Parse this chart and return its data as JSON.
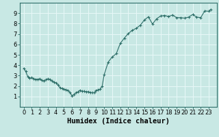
{
  "xlabel": "Humidex (Indice chaleur)",
  "background_color": "#c8e8e4",
  "grid_color": "#e8f8f8",
  "line_color": "#2d6e68",
  "marker_color": "#2d6e68",
  "x_values": [
    0,
    0.25,
    0.5,
    0.75,
    1,
    1.25,
    1.5,
    1.75,
    2,
    2.25,
    2.5,
    2.75,
    3,
    3.25,
    3.5,
    3.75,
    4,
    4.25,
    4.5,
    4.75,
    5,
    5.25,
    5.5,
    5.75,
    6,
    6.25,
    6.5,
    6.75,
    7,
    7.25,
    7.5,
    7.75,
    8,
    8.25,
    8.5,
    8.75,
    9,
    9.25,
    9.5,
    9.75,
    10,
    10.5,
    11,
    11.5,
    12,
    12.5,
    13,
    13.5,
    14,
    14.5,
    15,
    15.5,
    16,
    16.5,
    17,
    17.5,
    18,
    18.5,
    19,
    19.5,
    20,
    20.5,
    21,
    21.5,
    22,
    22.5,
    23,
    23.25
  ],
  "y_values": [
    3.7,
    3.4,
    2.9,
    2.75,
    2.8,
    2.7,
    2.65,
    2.65,
    2.7,
    2.55,
    2.5,
    2.6,
    2.7,
    2.65,
    2.5,
    2.4,
    2.3,
    2.1,
    1.85,
    1.75,
    1.7,
    1.65,
    1.6,
    1.4,
    1.05,
    1.2,
    1.35,
    1.45,
    1.6,
    1.5,
    1.5,
    1.45,
    1.45,
    1.4,
    1.35,
    1.35,
    1.55,
    1.65,
    1.7,
    2.0,
    3.1,
    4.3,
    4.8,
    5.1,
    6.1,
    6.6,
    7.05,
    7.35,
    7.55,
    7.85,
    8.35,
    8.65,
    7.95,
    8.45,
    8.72,
    8.78,
    8.68,
    8.82,
    8.57,
    8.57,
    8.52,
    8.62,
    8.87,
    8.62,
    8.57,
    9.22,
    9.18,
    9.35
  ],
  "xlim": [
    -0.5,
    24.0
  ],
  "ylim": [
    0,
    10
  ],
  "xticks": [
    0,
    1,
    2,
    3,
    4,
    5,
    6,
    7,
    8,
    9,
    10,
    11,
    12,
    13,
    14,
    15,
    16,
    17,
    18,
    19,
    20,
    21,
    22,
    23
  ],
  "yticks": [
    1,
    2,
    3,
    4,
    5,
    6,
    7,
    8,
    9
  ],
  "tick_fontsize": 6,
  "label_fontsize": 7.5
}
